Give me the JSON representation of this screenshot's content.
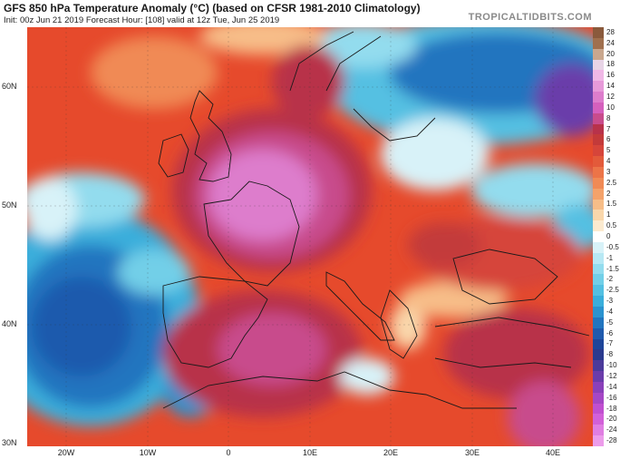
{
  "header": {
    "title": "GFS 850 hPa Temperature Anomaly (°C) (based on CFSR 1981-2010 Climatology)",
    "subtitle": "Init: 00z Jun 21 2019   Forecast Hour: [108]   valid at 12z Tue, Jun 25 2019",
    "brand": "TROPICALTIDBITS.COM"
  },
  "axes": {
    "lat_labels": [
      "60N",
      "50N",
      "40N",
      "30N"
    ],
    "lon_labels": [
      "20W",
      "10W",
      "0",
      "10E",
      "20E",
      "30E",
      "40E"
    ]
  },
  "colorbar": {
    "levels": [
      "28",
      "24",
      "20",
      "18",
      "16",
      "14",
      "12",
      "10",
      "8",
      "7",
      "6",
      "5",
      "4",
      "3",
      "2.5",
      "2",
      "1.5",
      "1",
      "0.5",
      "0",
      "-0.5",
      "-1",
      "-1.5",
      "-2",
      "-2.5",
      "-3",
      "-4",
      "-5",
      "-6",
      "-7",
      "-8",
      "-10",
      "-12",
      "-14",
      "-16",
      "-18",
      "-20",
      "-24",
      "-28"
    ],
    "colors": [
      "#8a5a3c",
      "#a0704e",
      "#c9a78e",
      "#e8d4e6",
      "#f0b8e6",
      "#e79ad9",
      "#dd7dcc",
      "#d560bd",
      "#c84c8c",
      "#b8324a",
      "#c33a3a",
      "#d6453a",
      "#e35a3a",
      "#ec7448",
      "#f08a55",
      "#f4a26a",
      "#f7bd88",
      "#f9d7ab",
      "#fbeacf",
      "#ffffff",
      "#d8f2f8",
      "#b7e8f4",
      "#93dcee",
      "#72cfe8",
      "#54c0e2",
      "#3aaedb",
      "#2b93cf",
      "#2275bf",
      "#1f5aad",
      "#1e4599",
      "#2a3a8e",
      "#4b3a9a",
      "#6a3caa",
      "#8a40b9",
      "#a547c5",
      "#c04fd0",
      "#d260d9",
      "#e07ee2",
      "#ec9cea"
    ]
  }
}
